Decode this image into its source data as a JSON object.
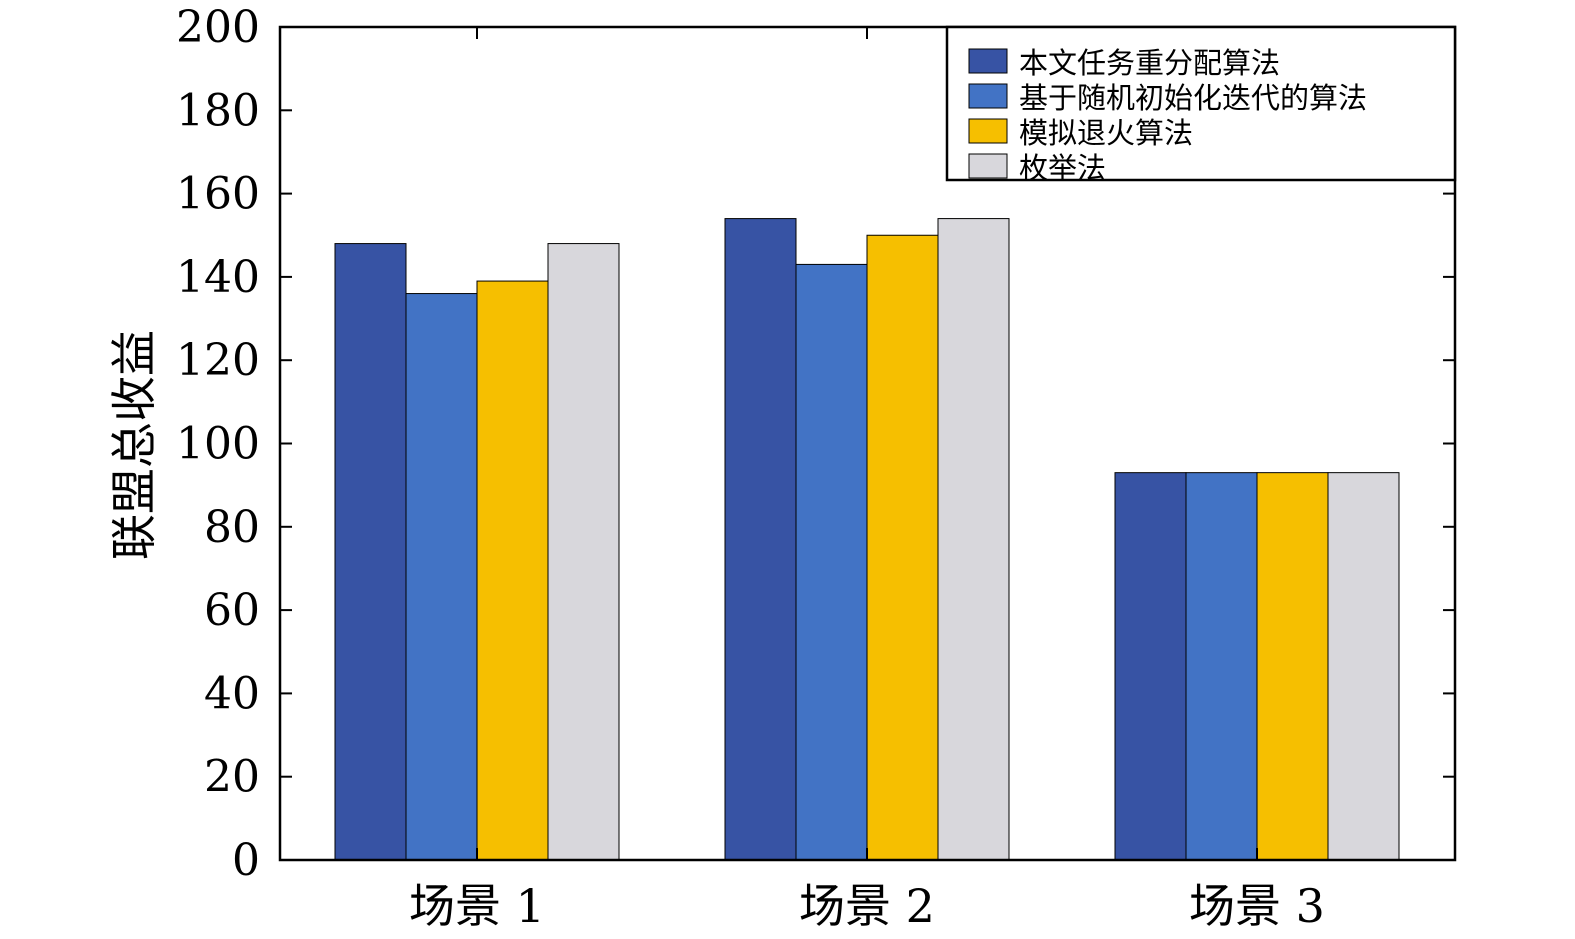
{
  "chart_data": {
    "type": "bar",
    "title": "",
    "xlabel": "",
    "ylabel": "联盟总收益",
    "ylim": [
      0,
      200
    ],
    "yticks": [
      0,
      20,
      40,
      60,
      80,
      100,
      120,
      140,
      160,
      180,
      200
    ],
    "categories": [
      "场景 1",
      "场景 2",
      "场景 3"
    ],
    "series": [
      {
        "name": "本文任务重分配算法",
        "color": "#3753a4",
        "values": [
          148,
          154,
          93
        ]
      },
      {
        "name": "基于随机初始化迭代的算法",
        "color": "#4273c5",
        "values": [
          136,
          143,
          93
        ]
      },
      {
        "name": "模拟退火算法",
        "color": "#f6bf00",
        "values": [
          139,
          150,
          93
        ]
      },
      {
        "name": "枚举法",
        "color": "#d8d7dc",
        "values": [
          148,
          154,
          93
        ]
      }
    ],
    "legend_position": "top-right",
    "grid": false
  }
}
